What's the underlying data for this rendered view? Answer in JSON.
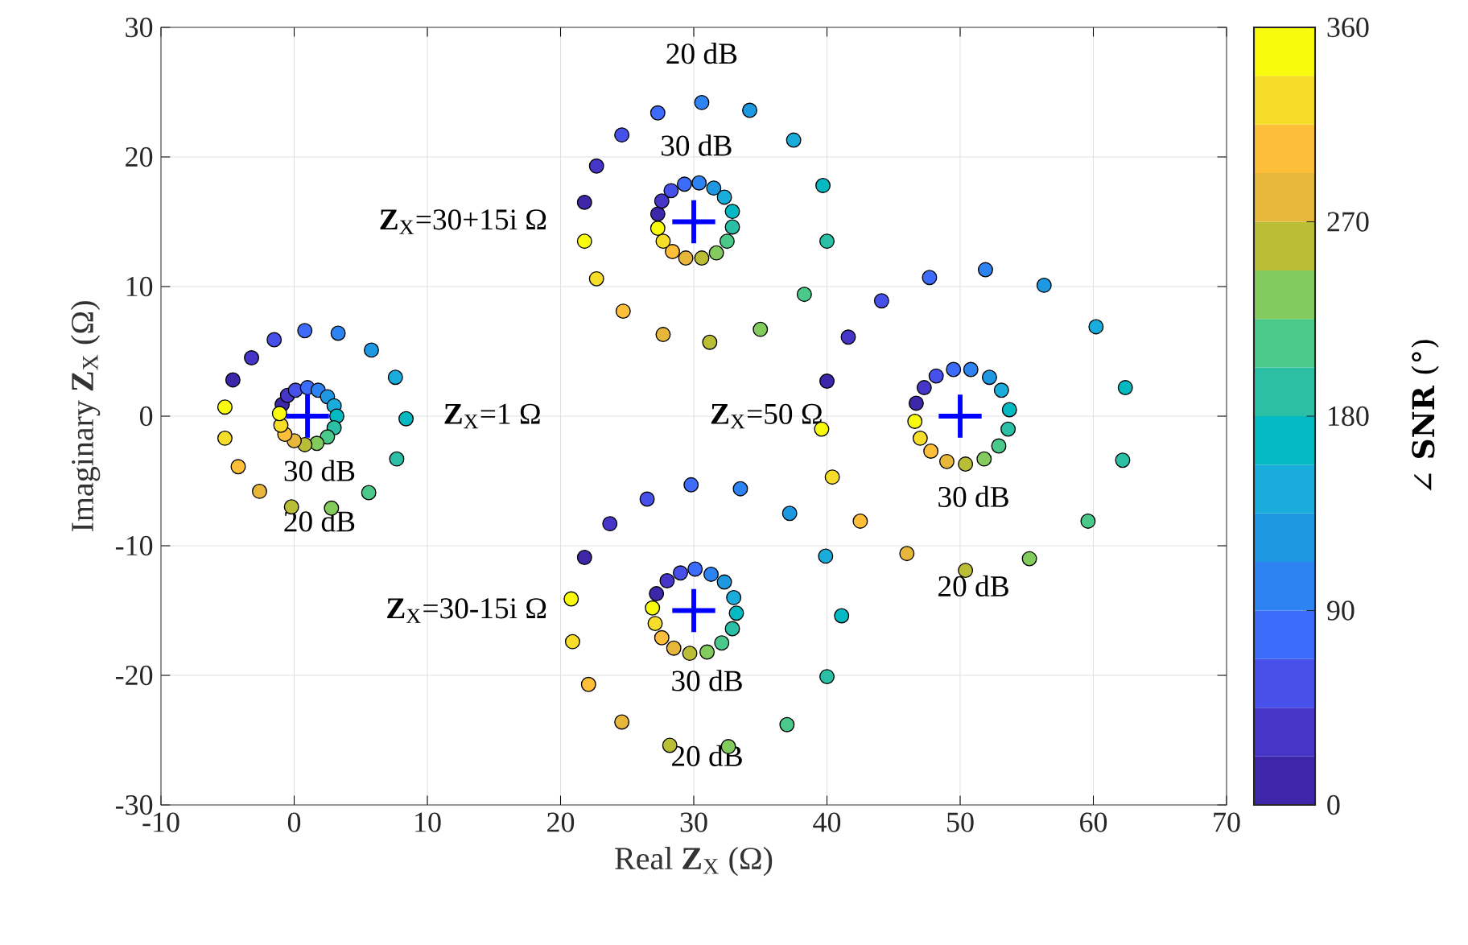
{
  "chart_data": {
    "type": "scatter",
    "xlabel": "Real **Z**$_{X}$ (Ω)",
    "ylabel": "Imaginary **Z**$_{X}$ (Ω)",
    "clabel": "∠ **SNR** (°)",
    "xlim": [
      -10,
      70
    ],
    "xticks": [
      -10,
      0,
      10,
      20,
      30,
      40,
      50,
      60,
      70
    ],
    "ylim": [
      -30,
      30
    ],
    "yticks": [
      -30,
      -20,
      -10,
      0,
      10,
      20,
      30
    ],
    "clim": [
      0,
      360
    ],
    "cticks": [
      0,
      90,
      180,
      270,
      360
    ],
    "grid": true,
    "series": [
      {
        "marker": "circle",
        "x": [
          -4.6,
          -3.2,
          -1.5,
          0.8,
          3.3,
          5.8,
          7.6,
          8.4,
          7.7,
          5.6,
          2.8,
          -0.2,
          -2.6,
          -4.2,
          -5.2,
          -5.2,
          -0.9,
          -0.5,
          0.1,
          1.0,
          1.8,
          2.5,
          3.0,
          3.2,
          3.0,
          2.5,
          1.7,
          0.8,
          0.0,
          -0.7,
          -1.0,
          -1.1,
          21.8,
          22.7,
          24.6,
          27.3,
          30.6,
          34.2,
          37.5,
          39.7,
          40.0,
          38.3,
          35.0,
          31.2,
          27.7,
          24.7,
          22.7,
          21.8,
          27.3,
          27.6,
          28.3,
          29.3,
          30.4,
          31.5,
          32.3,
          32.9,
          32.9,
          32.5,
          31.7,
          30.6,
          29.4,
          28.4,
          27.7,
          27.3,
          21.8,
          23.7,
          26.5,
          29.8,
          33.5,
          37.2,
          39.9,
          41.1,
          40.0,
          37.0,
          32.6,
          28.2,
          24.6,
          22.1,
          20.9,
          20.8,
          27.2,
          28.0,
          29.0,
          30.1,
          31.3,
          32.3,
          33.0,
          33.2,
          32.9,
          32.1,
          31.0,
          29.7,
          28.5,
          27.6,
          27.1,
          26.9,
          40.0,
          41.6,
          44.1,
          47.7,
          51.9,
          56.3,
          60.2,
          62.4,
          62.2,
          59.6,
          55.2,
          50.4,
          46.0,
          42.5,
          40.4,
          39.6,
          46.7,
          47.3,
          48.2,
          49.5,
          50.8,
          52.2,
          53.1,
          53.7,
          53.6,
          52.9,
          51.8,
          50.4,
          49.0,
          47.8,
          47.0,
          46.6
        ],
        "values": [
          2.8,
          4.5,
          5.9,
          6.6,
          6.4,
          5.1,
          3.0,
          -0.2,
          -3.3,
          -5.9,
          -7.1,
          -7.0,
          -5.8,
          -3.9,
          -1.7,
          0.7,
          0.9,
          1.6,
          2.0,
          2.2,
          2.0,
          1.5,
          0.8,
          0.0,
          -0.9,
          -1.6,
          -2.1,
          -2.2,
          -1.9,
          -1.4,
          -0.7,
          0.2,
          16.5,
          19.3,
          21.7,
          23.4,
          24.2,
          23.6,
          21.3,
          17.8,
          13.5,
          9.4,
          6.7,
          5.7,
          6.3,
          8.1,
          10.6,
          13.5,
          15.6,
          16.6,
          17.4,
          17.9,
          18.0,
          17.6,
          16.9,
          15.8,
          14.6,
          13.5,
          12.6,
          12.2,
          12.2,
          12.7,
          13.5,
          14.5,
          -10.9,
          -8.3,
          -6.4,
          -5.3,
          -5.6,
          -7.5,
          -10.8,
          -15.4,
          -20.1,
          -23.8,
          -25.5,
          -25.4,
          -23.6,
          -20.7,
          -17.4,
          -14.1,
          -13.7,
          -12.7,
          -12.1,
          -11.8,
          -12.2,
          -12.8,
          -14.0,
          -15.2,
          -16.4,
          -17.5,
          -18.2,
          -18.3,
          -17.9,
          -17.1,
          -16.0,
          -14.8,
          2.7,
          6.1,
          8.9,
          10.7,
          11.3,
          10.1,
          6.9,
          2.2,
          -3.4,
          -8.1,
          -11.0,
          -11.9,
          -10.6,
          -8.1,
          -4.7,
          -1.0,
          1.0,
          2.2,
          3.1,
          3.6,
          3.6,
          3.0,
          2.0,
          0.5,
          -1.0,
          -2.3,
          -3.3,
          -3.7,
          -3.5,
          -2.7,
          -1.7,
          -0.4
        ],
        "colors": [
          "#3e26a8",
          "#4536c8",
          "#4750e8",
          "#3e6cfa",
          "#2e83f3",
          "#1f98e2",
          "#1aaddb",
          "#05b9c2",
          "#2bbfa6",
          "#4bc98a",
          "#83cb5c",
          "#babe36",
          "#e6b73a",
          "#fdbf3a",
          "#f5dd29",
          "#f9fb0e",
          "#3e26a8",
          "#4536c8",
          "#4750e8",
          "#3e6cfa",
          "#2e83f3",
          "#1f98e2",
          "#1aaddb",
          "#05b9c2",
          "#2bbfa6",
          "#4bc98a",
          "#83cb5c",
          "#babe36",
          "#e6b73a",
          "#fdbf3a",
          "#f5dd29",
          "#f9fb0e",
          "#3e26a8",
          "#4536c8",
          "#4750e8",
          "#3e6cfa",
          "#2e83f3",
          "#1f98e2",
          "#1aaddb",
          "#05b9c2",
          "#2bbfa6",
          "#4bc98a",
          "#83cb5c",
          "#babe36",
          "#e6b73a",
          "#fdbf3a",
          "#f5dd29",
          "#f9fb0e",
          "#3e26a8",
          "#4536c8",
          "#4750e8",
          "#3e6cfa",
          "#2e83f3",
          "#1f98e2",
          "#1aaddb",
          "#05b9c2",
          "#2bbfa6",
          "#4bc98a",
          "#83cb5c",
          "#babe36",
          "#e6b73a",
          "#fdbf3a",
          "#f5dd29",
          "#f9fb0e",
          "#3e26a8",
          "#4536c8",
          "#4750e8",
          "#3e6cfa",
          "#2e83f3",
          "#1f98e2",
          "#1aaddb",
          "#05b9c2",
          "#2bbfa6",
          "#4bc98a",
          "#83cb5c",
          "#babe36",
          "#e6b73a",
          "#fdbf3a",
          "#f5dd29",
          "#f9fb0e",
          "#3e26a8",
          "#4536c8",
          "#4750e8",
          "#3e6cfa",
          "#2e83f3",
          "#1f98e2",
          "#1aaddb",
          "#05b9c2",
          "#2bbfa6",
          "#4bc98a",
          "#83cb5c",
          "#babe36",
          "#e6b73a",
          "#fdbf3a",
          "#f5dd29",
          "#f9fb0e",
          "#3e26a8",
          "#4536c8",
          "#4750e8",
          "#3e6cfa",
          "#2e83f3",
          "#1f98e2",
          "#1aaddb",
          "#05b9c2",
          "#2bbfa6",
          "#4bc98a",
          "#83cb5c",
          "#babe36",
          "#e6b73a",
          "#fdbf3a",
          "#f5dd29",
          "#f9fb0e",
          "#3e26a8",
          "#4536c8",
          "#4750e8",
          "#3e6cfa",
          "#2e83f3",
          "#1f98e2",
          "#1aaddb",
          "#05b9c2",
          "#2bbfa6",
          "#4bc98a",
          "#83cb5c",
          "#babe36",
          "#e6b73a",
          "#fdbf3a",
          "#f5dd29",
          "#f9fb0e"
        ]
      },
      {
        "marker": "cross",
        "color": "#0000ff",
        "x": [
          30,
          1,
          50,
          30
        ],
        "values": [
          15,
          0,
          0,
          -15
        ]
      }
    ],
    "annotations": [
      "**Z**$_{X}$=30+15i Ω",
      "**Z**$_{X}$=1 Ω",
      "**Z**$_{X}$=50 Ω",
      "**Z**$_{X}$=30-15i Ω",
      "20 dB",
      "30 dB",
      "30 dB",
      "20 dB",
      "30 dB",
      "20 dB",
      "30 dB",
      "20 dB"
    ]
  }
}
